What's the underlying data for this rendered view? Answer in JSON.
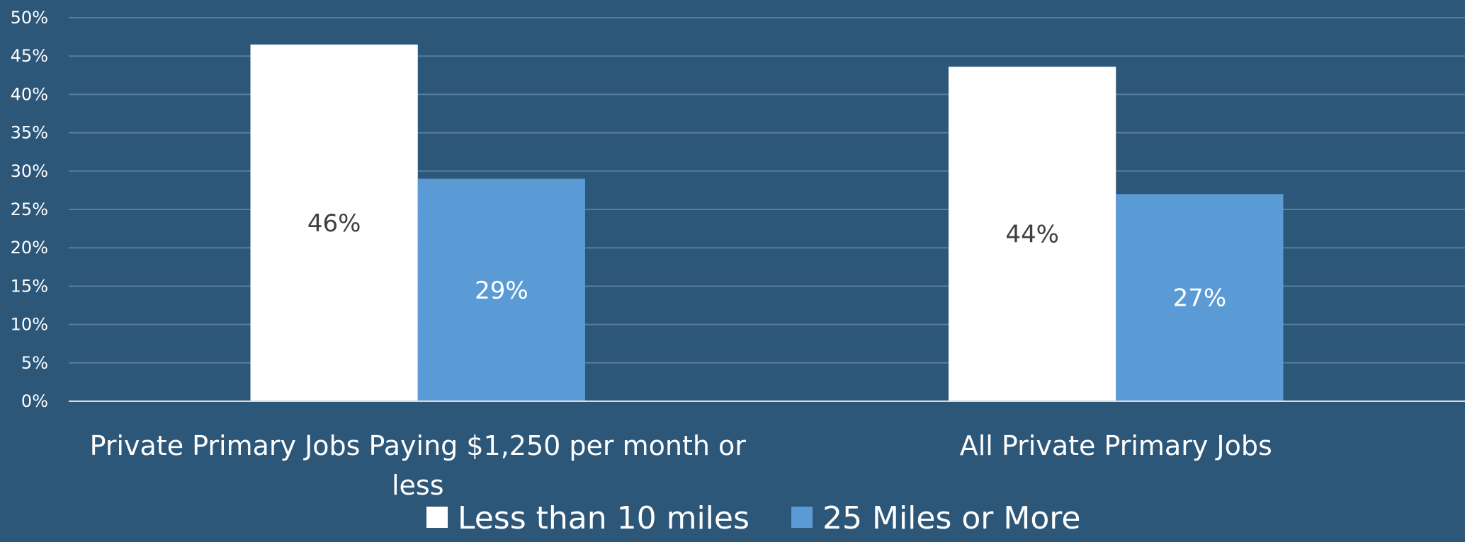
{
  "chart_data": {
    "type": "bar",
    "title": "",
    "xlabel": "",
    "ylabel": "",
    "ylim": [
      0,
      0.5
    ],
    "yticks": [
      0,
      0.05,
      0.1,
      0.15,
      0.2,
      0.25,
      0.3,
      0.35,
      0.4,
      0.45,
      0.5
    ],
    "ytick_labels": [
      "0%",
      "5%",
      "10%",
      "15%",
      "20%",
      "25%",
      "30%",
      "35%",
      "40%",
      "45%",
      "50%"
    ],
    "grid": true,
    "legend_position": "bottom",
    "categories": [
      [
        "Private Primary Jobs Paying $1,250 per month or",
        "less"
      ],
      [
        "All Private Primary Jobs"
      ]
    ],
    "series": [
      {
        "name": "Less than 10 miles",
        "color": "#ffffff",
        "label_color": "#404040",
        "values": [
          0.465,
          0.436
        ],
        "data_labels": [
          "46%",
          "44%"
        ]
      },
      {
        "name": "25 Miles or More",
        "color": "#5b9bd5",
        "label_color": "#ffffff",
        "values": [
          0.29,
          0.27
        ],
        "data_labels": [
          "29%",
          "27%"
        ]
      }
    ],
    "colors": {
      "background": "#2d5779",
      "gridline": "#5a7d9a",
      "axis": "#d9d9d9"
    }
  }
}
